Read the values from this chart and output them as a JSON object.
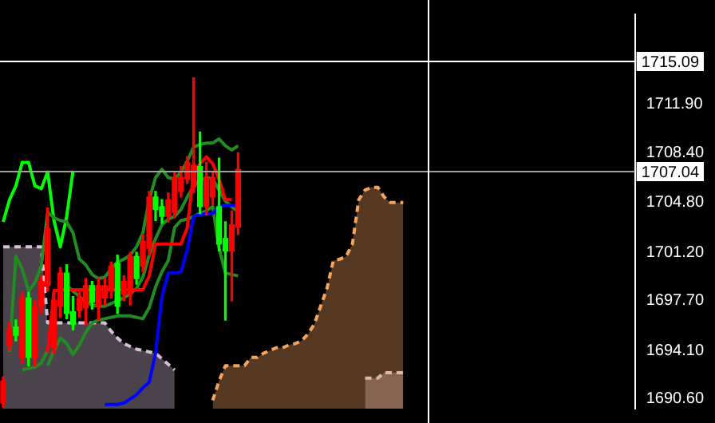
{
  "chart_data": {
    "type": "candlestick",
    "categories": [
      null,
      null,
      null,
      null,
      null,
      null,
      null,
      null,
      null,
      null,
      null,
      null,
      null,
      null,
      null,
      null,
      null,
      null,
      null,
      null,
      null,
      null,
      null,
      null,
      null,
      null,
      null,
      null,
      null,
      null,
      null,
      null,
      null,
      null,
      null,
      null,
      null,
      null,
      null,
      null,
      null,
      null,
      null,
      null,
      null,
      null,
      null,
      null,
      null,
      null,
      null,
      null,
      null,
      null,
      null,
      null,
      null,
      null,
      null,
      null,
      null,
      null,
      null,
      null,
      null,
      null,
      null,
      null,
      null,
      null,
      null,
      null,
      null,
      null,
      null,
      null,
      null,
      null,
      null,
      null,
      null,
      null,
      null,
      null,
      null,
      null,
      null,
      null,
      null,
      null,
      null,
      null,
      null,
      null,
      null,
      null,
      null,
      null,
      null,
      null
    ],
    "ohlc": [
      [
        1691.9,
        1692.2,
        1690.0,
        1690.3
      ],
      [
        1695.7,
        1696.1,
        1694.1,
        1694.5
      ],
      [
        1695.2,
        1696.3,
        1694.8,
        1695.8
      ],
      [
        1697.9,
        1698.3,
        1693.2,
        1693.6
      ],
      [
        1693.6,
        1698.3,
        1693.0,
        1697.9
      ],
      [
        1697.3,
        1697.7,
        1693.0,
        1693.6
      ],
      [
        1699.1,
        1699.5,
        1696.8,
        1697.3
      ],
      [
        1702.9,
        1704.4,
        1698.4,
        1698.8
      ],
      [
        1697.7,
        1698.5,
        1693.9,
        1694.3
      ],
      [
        1699.7,
        1700.1,
        1696.5,
        1697.3
      ],
      [
        1696.8,
        1700.3,
        1696.4,
        1699.7
      ],
      [
        1696.0,
        1698.0,
        1695.6,
        1696.9
      ],
      [
        1697.9,
        1698.3,
        1696.5,
        1697.0
      ],
      [
        1698.8,
        1699.3,
        1696.0,
        1697.2
      ],
      [
        1697.6,
        1699.1,
        1697.1,
        1698.8
      ],
      [
        1698.8,
        1699.3,
        1696.3,
        1697.3
      ],
      [
        1698.8,
        1699.3,
        1697.4,
        1697.9
      ],
      [
        1700.2,
        1700.5,
        1697.9,
        1698.4
      ],
      [
        1697.3,
        1701.0,
        1696.8,
        1700.4
      ],
      [
        1699.1,
        1699.5,
        1697.7,
        1698.2
      ],
      [
        1700.9,
        1701.2,
        1697.4,
        1698.2
      ],
      [
        1699.3,
        1701.2,
        1698.9,
        1700.9
      ],
      [
        1702.0,
        1702.5,
        1699.8,
        1700.2
      ],
      [
        1705.2,
        1705.6,
        1701.0,
        1701.5
      ],
      [
        1704.3,
        1705.6,
        1703.5,
        1705.2
      ],
      [
        1703.8,
        1705.0,
        1703.3,
        1704.5
      ],
      [
        1705.0,
        1705.5,
        1703.4,
        1703.8
      ],
      [
        1706.6,
        1707.0,
        1703.7,
        1704.1
      ],
      [
        1706.6,
        1707.4,
        1705.2,
        1705.6
      ],
      [
        1707.7,
        1708.1,
        1706.2,
        1706.5
      ],
      [
        1707.5,
        1713.8,
        1705.5,
        1705.9
      ],
      [
        1704.5,
        1709.9,
        1704.0,
        1707.4
      ],
      [
        1706.6,
        1707.7,
        1703.9,
        1704.5
      ],
      [
        1706.6,
        1707.0,
        1704.6,
        1705.2
      ],
      [
        1701.8,
        1708.0,
        1701.3,
        1704.5
      ],
      [
        1701.3,
        1703.4,
        1696.3,
        1702.2
      ],
      [
        1703.2,
        1704.2,
        1697.7,
        1701.3
      ],
      [
        1707.2,
        1708.4,
        1702.5,
        1703.0
      ],
      null,
      null,
      null,
      null,
      null,
      null,
      null,
      null,
      null,
      null,
      null,
      null,
      null,
      null,
      null,
      null,
      null,
      null,
      null,
      null,
      null,
      null,
      null,
      null,
      null,
      null,
      null,
      null,
      null,
      null,
      null,
      null,
      null,
      null,
      null,
      null,
      null,
      null,
      null,
      null,
      null,
      null,
      null,
      null,
      null,
      null,
      null,
      null,
      null,
      null,
      null,
      null,
      null,
      null,
      null,
      null,
      null,
      null,
      null,
      null,
      null,
      null
    ],
    "colors": [
      "#ff0000",
      "#ff0000",
      "#00ff00",
      "#ff0000",
      "#00ff00",
      "#ff0000",
      "#ff0000",
      "#ff0000",
      "#ff0000",
      "#ff0000",
      "#00ff00",
      "#00ff00",
      "#ff0000",
      "#ff0000",
      "#00ff00",
      "#ff0000",
      "#ff0000",
      "#ff0000",
      "#00ff00",
      "#ff0000",
      "#ff0000",
      "#00ff00",
      "#ff0000",
      "#ff0000",
      "#00ff00",
      "#00ff00",
      "#ff0000",
      "#ff0000",
      "#ff0000",
      "#ff0000",
      "#ff0000",
      "#00ff00",
      "#ff0000",
      "#ff0000",
      "#00ff00",
      "#00ff00",
      "#ff0000",
      "#ff0000",
      null,
      null,
      null,
      null,
      null,
      null,
      null,
      null,
      null,
      null,
      null,
      null,
      null,
      null,
      null,
      null,
      null,
      null,
      null,
      null,
      null,
      null,
      null,
      null,
      null,
      null,
      null,
      null,
      null,
      null,
      null,
      null,
      null,
      null,
      null,
      null,
      null,
      null,
      null,
      null,
      null,
      null,
      null,
      null,
      null,
      null,
      null,
      null,
      null,
      null,
      null,
      null,
      null,
      null,
      null,
      null,
      null,
      null,
      null,
      null,
      null,
      null
    ],
    "series": [
      {
        "type": "area",
        "color": "#f4a460",
        "line_style": "dashed",
        "values": [
          null,
          null,
          null,
          null,
          null,
          null,
          null,
          null,
          null,
          null,
          null,
          null,
          null,
          null,
          null,
          null,
          null,
          null,
          null,
          null,
          null,
          null,
          null,
          null,
          null,
          null,
          null,
          null,
          null,
          null,
          null,
          null,
          null,
          1690.5,
          1691.9,
          1693.0,
          1693.0,
          1693.0,
          1693.0,
          1693.6,
          1693.6,
          1693.9,
          1694.1,
          1694.3,
          1694.3,
          1694.5,
          1694.6,
          1694.8,
          1695.3,
          1696.0,
          1697.3,
          1698.6,
          1700.6,
          1700.7,
          1700.9,
          1701.8,
          1705.0,
          1705.7,
          1705.9,
          1705.9,
          1705.2,
          1704.8,
          1704.8,
          1704.8,
          null,
          null,
          null,
          null,
          null,
          null,
          null,
          null,
          null,
          null,
          null,
          null,
          null,
          null,
          null,
          null,
          null,
          null,
          null,
          null,
          null,
          null,
          null,
          null,
          null,
          null,
          null,
          null,
          null,
          null,
          null,
          null,
          null,
          null,
          null,
          null
        ]
      },
      {
        "type": "area",
        "color": "#d8bfd8",
        "line_style": "dashed",
        "values": [
          1701.6,
          1701.6,
          1701.6,
          1701.6,
          1701.6,
          1701.6,
          1701.6,
          1696.1,
          1696.1,
          1696.1,
          1696.1,
          1696.1,
          1696.1,
          1696.1,
          1696.1,
          1696.1,
          1696.1,
          1695.5,
          1695.0,
          1694.6,
          1694.4,
          1694.2,
          1694.1,
          1694.0,
          1693.9,
          1693.5,
          1693.1,
          1692.7,
          null,
          null,
          null,
          null,
          null,
          null,
          null,
          null,
          null,
          null,
          null,
          null,
          null,
          null,
          null,
          null,
          null,
          null,
          null,
          null,
          null,
          null,
          null,
          null,
          null,
          null,
          null,
          null,
          null,
          1692.1,
          1692.1,
          1692.1,
          1692.5,
          1692.5,
          1692.5,
          1692.5,
          null,
          null,
          null,
          null,
          null,
          null,
          null,
          null,
          null,
          null,
          null,
          null,
          null,
          null,
          null,
          null,
          null,
          null,
          null,
          null,
          null,
          null,
          null,
          null,
          null,
          null,
          null,
          null,
          null,
          null,
          null,
          null,
          null,
          null,
          null,
          null
        ]
      },
      {
        "type": "line",
        "color": "#0000ff",
        "values": [
          null,
          null,
          null,
          null,
          null,
          null,
          null,
          null,
          null,
          null,
          null,
          null,
          null,
          null,
          null,
          null,
          1690.2,
          1690.2,
          1690.2,
          1690.3,
          1690.6,
          1690.9,
          1691.4,
          1691.8,
          1693.9,
          1698.0,
          1699.7,
          1699.7,
          1699.8,
          1701.4,
          1703.8,
          1703.9,
          1704.0,
          1704.0,
          1704.5,
          1704.6,
          1704.6,
          1704.6,
          null,
          null,
          null,
          null,
          null,
          null,
          null,
          null,
          null,
          null,
          null,
          null,
          null,
          null,
          null,
          null,
          null,
          null,
          null,
          null,
          null,
          null,
          null,
          null,
          null,
          null,
          null,
          null,
          null,
          null,
          null,
          null,
          null,
          null,
          null,
          null,
          null,
          null,
          null,
          null,
          null,
          null,
          null,
          null,
          null,
          null,
          null,
          null,
          null,
          null,
          null,
          null,
          null,
          null,
          null,
          null,
          null,
          null,
          null,
          null,
          null,
          null
        ]
      },
      {
        "type": "line",
        "color": "#ff0000",
        "values": [
          null,
          null,
          null,
          null,
          null,
          null,
          null,
          1694.0,
          1698.4,
          1698.5,
          1698.5,
          1698.5,
          1698.5,
          1698.5,
          1698.5,
          1698.5,
          1698.5,
          1698.5,
          1698.5,
          1698.5,
          1698.5,
          1698.5,
          1698.5,
          1699.5,
          1701.8,
          1701.8,
          1701.8,
          1701.8,
          1701.8,
          1703.0,
          1707.0,
          1707.6,
          1708.1,
          1707.6,
          1706.5,
          1705.0,
          1705.0,
          null,
          null,
          null,
          null,
          null,
          null,
          null,
          null,
          null,
          null,
          null,
          null,
          null,
          null,
          null,
          null,
          null,
          null,
          null,
          null,
          null,
          null,
          null,
          null,
          null,
          null,
          null,
          null,
          null,
          null,
          null,
          null,
          null,
          null,
          null,
          null,
          null,
          null,
          null,
          null,
          null,
          null,
          null,
          null,
          null,
          null,
          null,
          null,
          null,
          null,
          null,
          null,
          null,
          null,
          null,
          null,
          null,
          null,
          null,
          null,
          null,
          null,
          null
        ]
      },
      {
        "type": "line",
        "color": "#228b22",
        "values": [
          null,
          1694.0,
          1700.9,
          1700.0,
          1698.4,
          1699.0,
          1700.2,
          1704.1,
          1703.7,
          1703.5,
          1703.4,
          1702.6,
          1700.7,
          1700.3,
          1699.6,
          1699.3,
          1699.4,
          1700.0,
          1700.5,
          1700.7,
          1701.0,
          1701.6,
          1702.6,
          1705.0,
          1706.6,
          1707.2,
          1706.6,
          1706.5,
          1707.0,
          1707.8,
          1708.8,
          1709.0,
          1709.1,
          1709.1,
          1709.4,
          1708.9,
          1708.6,
          1708.9,
          null,
          null,
          null,
          null,
          null,
          null,
          null,
          null,
          null,
          null,
          null,
          null,
          null,
          null,
          null,
          null,
          null,
          null,
          null,
          null,
          null,
          null,
          null,
          null,
          null,
          null,
          null,
          null,
          null,
          null,
          null,
          null,
          null,
          null,
          null,
          null,
          null,
          null,
          null,
          null,
          null,
          null,
          null,
          null,
          null,
          null,
          null,
          null,
          null,
          null,
          null,
          null,
          null,
          null,
          null,
          null,
          null,
          null,
          null,
          null,
          null,
          null
        ]
      },
      {
        "type": "line",
        "color": "#228b22",
        "values": [
          null,
          null,
          null,
          1692.7,
          1692.8,
          1692.9,
          1693.2,
          1694.1,
          null,
          null,
          1698.8,
          1698.4,
          1698.0,
          1697.6,
          1697.4,
          1697.3,
          1697.3,
          1697.5,
          1697.7,
          1697.9,
          1698.2,
          1698.6,
          1699.4,
          1701.0,
          1702.2,
          1703.2,
          1703.6,
          1703.8,
          1704.3,
          1705.2,
          1706.0,
          1706.4,
          1706.6,
          1706.5,
          1705.7,
          1704.9,
          1704.5,
          1704.1,
          null,
          null,
          null,
          null,
          null,
          null,
          null,
          null,
          null,
          null,
          null,
          null,
          null,
          null,
          null,
          null,
          null,
          null,
          null,
          null,
          null,
          null,
          null,
          null,
          null,
          null,
          null,
          null,
          null,
          null,
          null,
          null,
          null,
          null,
          null,
          null,
          null,
          null,
          null,
          null,
          null,
          null,
          null,
          null,
          null,
          null,
          null,
          null,
          null,
          null,
          null,
          null,
          null,
          null,
          null,
          null,
          null,
          null,
          null,
          null,
          null,
          null
        ]
      },
      {
        "type": "line",
        "color": "#228b22",
        "values": [
          null,
          null,
          null,
          null,
          null,
          null,
          null,
          1693.0,
          1694.1,
          1695.0,
          1694.6,
          1693.8,
          1694.5,
          1695.4,
          1696.1,
          1696.3,
          1696.4,
          1696.5,
          1696.6,
          1696.6,
          1696.6,
          1696.5,
          1696.4,
          1697.2,
          1698.7,
          1699.8,
          1700.6,
          1703.0,
          1703.5,
          1703.6,
          1703.8,
          1704.0,
          1704.2,
          1704.5,
          1701.5,
          1699.7,
          1699.6,
          1699.5,
          null,
          null,
          null,
          null,
          null,
          null,
          null,
          null,
          null,
          null,
          null,
          null,
          null,
          null,
          null,
          null,
          null,
          null,
          null,
          null,
          null,
          null,
          null,
          null,
          null,
          null,
          null,
          null,
          null,
          null,
          null,
          null,
          null,
          null,
          null,
          null,
          null,
          null,
          null,
          null,
          null,
          null,
          null,
          null,
          null,
          null,
          null,
          null,
          null,
          null,
          null,
          null,
          null,
          null,
          null,
          null,
          null,
          null,
          null,
          null,
          null,
          null
        ]
      },
      {
        "type": "line",
        "color": "#00ff00",
        "values": [
          1703.4,
          1705.0,
          1706.0,
          1707.7,
          1707.7,
          1706.0,
          1705.8,
          1707.0,
          1703.5,
          1701.6,
          1703.8,
          1707.1,
          null,
          null,
          null,
          null,
          null,
          null,
          null,
          null,
          null,
          null,
          null,
          null,
          null,
          null,
          null,
          null,
          null,
          null,
          null,
          null,
          null,
          null,
          null,
          null,
          null,
          null,
          null,
          null,
          null,
          null,
          null,
          null,
          null,
          null,
          null,
          null,
          null,
          null,
          null,
          null,
          null,
          null,
          null,
          null,
          null,
          null,
          null,
          null,
          null,
          null,
          null,
          null,
          null,
          null,
          null,
          null,
          null,
          null,
          null,
          null,
          null,
          null,
          null,
          null,
          null,
          null,
          null,
          null,
          null,
          null,
          null,
          null,
          null,
          null,
          null,
          null,
          null,
          null,
          null,
          null,
          null,
          null,
          null,
          null,
          null,
          null,
          null,
          null
        ]
      }
    ],
    "ylim": [
      1689.9,
      1718.4
    ],
    "yticks": [
      {
        "value": 1690.6,
        "label": "1690.60"
      },
      {
        "value": 1694.1,
        "label": "1694.10"
      },
      {
        "value": 1697.7,
        "label": "1697.70"
      },
      {
        "value": 1701.2,
        "label": "1701.20"
      },
      {
        "value": 1704.8,
        "label": "1704.80"
      },
      {
        "value": 1708.4,
        "label": "1708.40"
      },
      {
        "value": 1711.9,
        "label": "1711.90"
      }
    ],
    "ref_lines": [
      {
        "axis": "y",
        "value": 1715.09,
        "label": "1715.09",
        "color": "#ffffff"
      },
      {
        "axis": "y",
        "value": 1707.04,
        "label": "1707.04",
        "color": "#a0a0a0"
      }
    ],
    "tick_labels": "y",
    "legend": false
  }
}
